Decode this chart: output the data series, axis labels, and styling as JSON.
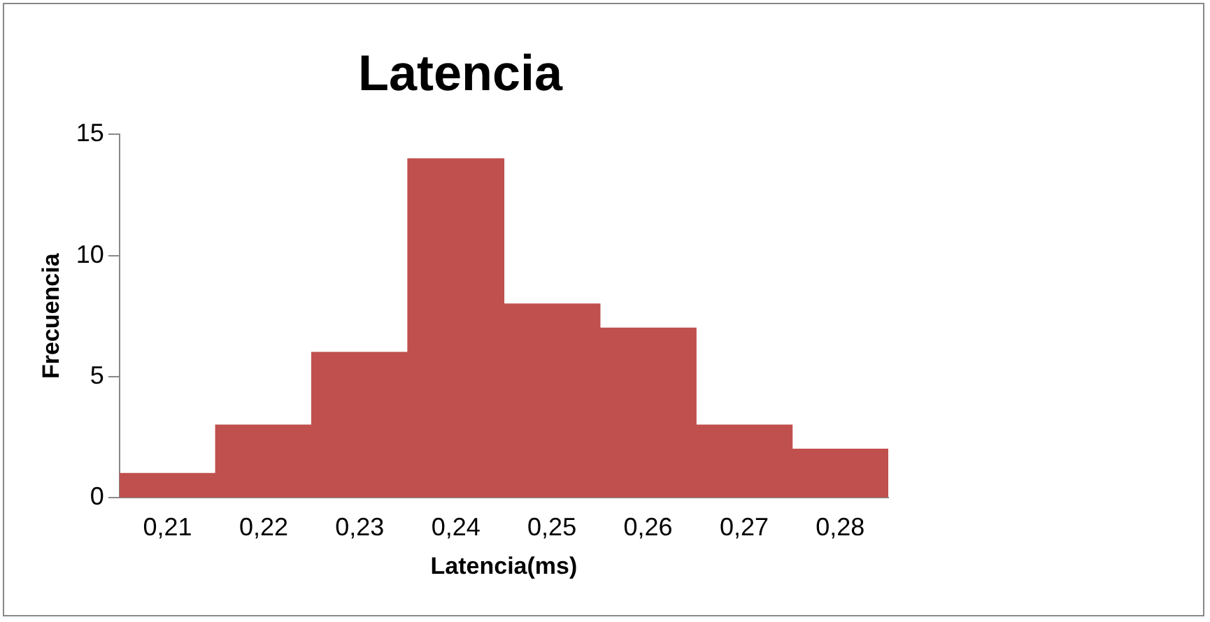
{
  "chart_data": {
    "type": "bar",
    "title": "Latencia",
    "xlabel": "Latencia(ms)",
    "ylabel": "Frecuencia",
    "categories": [
      "0,21",
      "0,22",
      "0,23",
      "0,24",
      "0,25",
      "0,26",
      "0,27",
      "0,28"
    ],
    "series": [
      {
        "color": "#c0504d",
        "values": [
          1,
          3,
          6,
          14,
          8,
          7,
          3,
          2
        ]
      }
    ],
    "ylim": [
      0,
      15
    ],
    "yticks": [
      0,
      5,
      10,
      15
    ],
    "grid": false,
    "legend": false
  }
}
